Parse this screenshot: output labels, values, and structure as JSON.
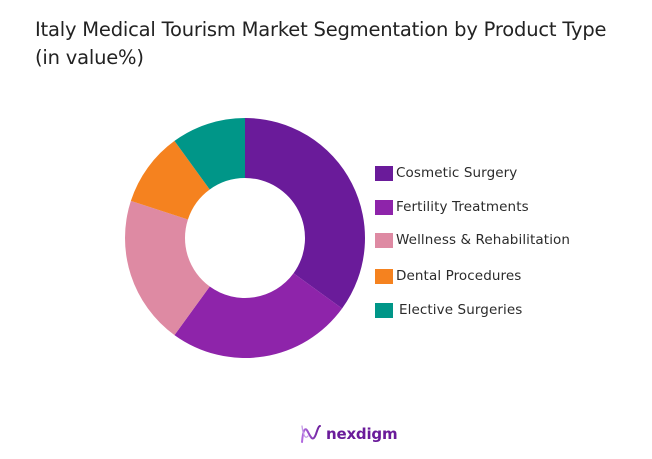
{
  "chart_data": {
    "type": "pie",
    "variant": "donut",
    "title": "Italy Medical Tourism Market Segmentation by Product Type (in value%)",
    "title_lines": [
      "Italy Medical Tourism Market Segmentation by Product Type",
      "(in value%)"
    ],
    "categories": [
      "Cosmetic Surgery",
      "Fertility Treatments",
      "Wellness & Rehabilitation",
      "Dental Procedures",
      "Elective Surgeries"
    ],
    "values": [
      35,
      25,
      20,
      10,
      10
    ],
    "unit": "%",
    "colors": [
      "#6a1b9a",
      "#8e24aa",
      "#de8aa3",
      "#f5821f",
      "#009688"
    ],
    "start_angle": "12 o'clock, clockwise",
    "hole_ratio": 0.5,
    "legend_position": "right",
    "data_labels": false
  },
  "legend": {
    "items": [
      {
        "label": "Cosmetic Surgery",
        "color": "#6a1b9a"
      },
      {
        "label": "Fertility Treatments",
        "color": "#8e24aa"
      },
      {
        "label": "Wellness & Rehabilitation",
        "color": "#de8aa3"
      },
      {
        "label": "Dental Procedures",
        "color": "#f5821f"
      },
      {
        "label": "Elective Surgeries",
        "color": "#009688"
      }
    ]
  },
  "branding": {
    "logo_text": "nexdigm",
    "logo_color": "#6a1b9a"
  }
}
